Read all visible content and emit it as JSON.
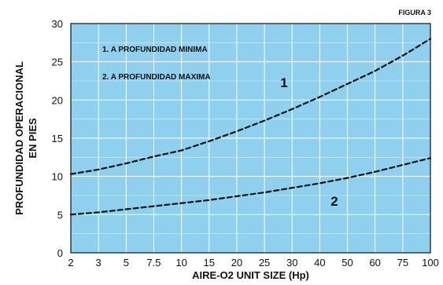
{
  "chart_data": {
    "type": "line",
    "figure_label": "FIGURA 3",
    "xlabel": "AIRE-O2 UNIT SIZE (Hp)",
    "ylabel_lines": [
      "PROFUNDIDAD OPERACIONAL",
      "EN PIES"
    ],
    "ylim": [
      0,
      30
    ],
    "y_ticks": [
      0,
      5,
      10,
      15,
      20,
      25,
      30
    ],
    "x_scale": "categorical-ticks",
    "categories": [
      "2",
      "3",
      "5",
      "7.5",
      "10",
      "15",
      "20",
      "25",
      "30",
      "40",
      "50",
      "60",
      "75",
      "100"
    ],
    "legend": [
      "1. A PROFUNDIDAD MINIMA",
      "2. A PROFUNDIDAD MAXIMA"
    ],
    "legend_placement": "top-left",
    "grid": true,
    "background_color": "#8ed0ee",
    "grid_color": "#ffffff",
    "line_color": "#111111",
    "series": [
      {
        "name": "1",
        "values": [
          10.3,
          10.9,
          11.7,
          12.6,
          13.4,
          14.6,
          15.9,
          17.3,
          18.8,
          20.4,
          22.1,
          23.8,
          25.8,
          28.0
        ]
      },
      {
        "name": "2",
        "values": [
          5.0,
          5.3,
          5.7,
          6.1,
          6.5,
          6.9,
          7.4,
          7.9,
          8.5,
          9.1,
          9.8,
          10.6,
          11.5,
          12.4
        ]
      }
    ],
    "curve_labels": [
      "1",
      "2"
    ]
  }
}
